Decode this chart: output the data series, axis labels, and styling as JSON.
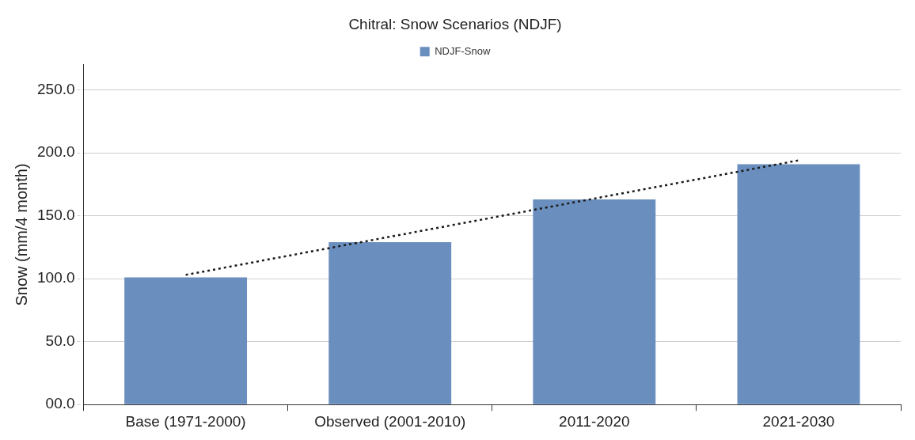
{
  "chart_data": {
    "type": "bar",
    "title": "Chitral: Snow Scenarios (NDJF)",
    "ylabel": "Snow (mm/4 month)",
    "categories": [
      "Base (1971-2000)",
      "Observed (2001-2010)",
      "2011-2020",
      "2021-2030"
    ],
    "series": [
      {
        "name": "NDJF-Snow",
        "color": "#6a8fbf",
        "values": [
          101,
          129,
          163,
          191
        ]
      },
      {
        "type": "line",
        "color": "#1a1a1a",
        "line_style": "dotted",
        "marker": "none",
        "values": [
          103,
          null,
          null,
          194
        ]
      }
    ],
    "ylim": [
      0,
      270
    ],
    "yticks": [
      {
        "value": 0,
        "label": "00.0"
      },
      {
        "value": 50,
        "label": "50.0"
      },
      {
        "value": 100,
        "label": "100.0"
      },
      {
        "value": 150,
        "label": "150.0"
      },
      {
        "value": 200,
        "label": "200.0"
      },
      {
        "value": 250,
        "label": "250.0"
      }
    ],
    "grid": "y",
    "legend": "top"
  }
}
